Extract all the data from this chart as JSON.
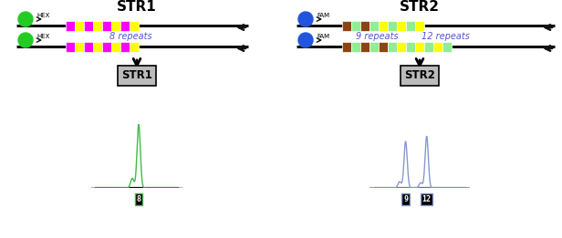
{
  "bg_color": "#ffffff",
  "title_str1": "STR1",
  "title_str2": "STR2",
  "str1_label": "STR1",
  "str2_label": "STR2",
  "hex_color": "#22cc22",
  "fam_color": "#2255dd",
  "repeat_colors_str1": [
    "#ff00ff",
    "#ffff00",
    "#ff00ff",
    "#ffff00",
    "#ff00ff",
    "#ffff00",
    "#ff00ff",
    "#ffff00"
  ],
  "repeat_colors_str2_top": [
    "#8B4513",
    "#90EE90",
    "#8B4513",
    "#90EE90",
    "#ffff00",
    "#90EE90",
    "#ffff00",
    "#90EE90",
    "#ffff00"
  ],
  "repeat_colors_str2_bot": [
    "#8B4513",
    "#90EE90",
    "#8B4513",
    "#90EE90",
    "#8B4513",
    "#90EE90",
    "#ffff00",
    "#90EE90",
    "#ffff00",
    "#90EE90",
    "#ffff00",
    "#90EE90"
  ],
  "repeats_label_str1": "8 repeats",
  "repeats_label_str2_top": "9 repeats",
  "repeats_label_str2_bot": "12 repeats",
  "label_8": "8",
  "label_9": "9",
  "label_12": "12",
  "peak_color_str1": "#44bb44",
  "peak_color_str2": "#8899cc",
  "repeat_label_color": "#5555cc",
  "dna_line_color": "#111111",
  "arrow_color": "#111111",
  "label_box_color": "#bbbbbb",
  "allele_box_edge_str1": "#44bb44",
  "allele_box_edge_str2": "#8899cc"
}
